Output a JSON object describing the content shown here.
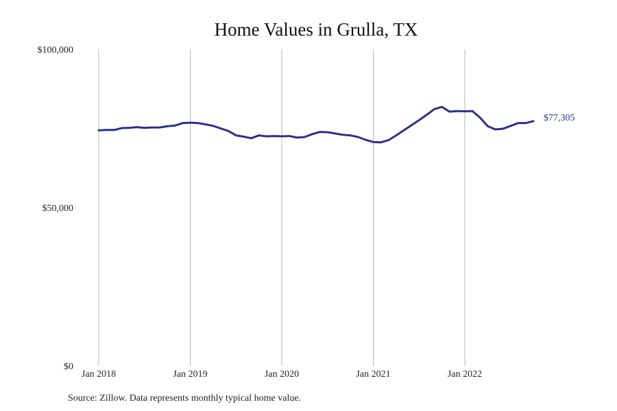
{
  "chart_data": {
    "type": "line",
    "title": "Home Values in Grulla, TX",
    "source_note": "Source: Zillow. Data represents monthly typical home value.",
    "x_start": "2018-01",
    "x_end": "2022-10",
    "x_ticks": [
      {
        "date": "2018-01",
        "label": "Jan 2018"
      },
      {
        "date": "2019-01",
        "label": "Jan 2019"
      },
      {
        "date": "2020-01",
        "label": "Jan 2020"
      },
      {
        "date": "2021-01",
        "label": "Jan 2021"
      },
      {
        "date": "2022-01",
        "label": "Jan 2022"
      }
    ],
    "y_ticks": [
      {
        "value": 0,
        "label": "$0"
      },
      {
        "value": 50000,
        "label": "$50,000"
      },
      {
        "value": 100000,
        "label": "$100,000"
      }
    ],
    "ylim": [
      0,
      100000
    ],
    "grid": "vertical lines at year ticks",
    "line_color": "#2e2e8c",
    "end_label": "$77,305",
    "series": [
      {
        "points": [
          [
            "2018-01",
            74400
          ],
          [
            "2018-02",
            74500
          ],
          [
            "2018-03",
            74500
          ],
          [
            "2018-04",
            75100
          ],
          [
            "2018-05",
            75200
          ],
          [
            "2018-06",
            75400
          ],
          [
            "2018-07",
            75200
          ],
          [
            "2018-08",
            75300
          ],
          [
            "2018-09",
            75300
          ],
          [
            "2018-10",
            75700
          ],
          [
            "2018-11",
            75900
          ],
          [
            "2018-12",
            76700
          ],
          [
            "2019-01",
            76800
          ],
          [
            "2019-02",
            76700
          ],
          [
            "2019-03",
            76300
          ],
          [
            "2019-04",
            75800
          ],
          [
            "2019-05",
            75000
          ],
          [
            "2019-06",
            74200
          ],
          [
            "2019-07",
            72800
          ],
          [
            "2019-08",
            72400
          ],
          [
            "2019-09",
            71900
          ],
          [
            "2019-10",
            72800
          ],
          [
            "2019-11",
            72500
          ],
          [
            "2019-12",
            72600
          ],
          [
            "2020-01",
            72500
          ],
          [
            "2020-02",
            72600
          ],
          [
            "2020-03",
            72100
          ],
          [
            "2020-04",
            72300
          ],
          [
            "2020-05",
            73200
          ],
          [
            "2020-06",
            73900
          ],
          [
            "2020-07",
            73800
          ],
          [
            "2020-08",
            73400
          ],
          [
            "2020-09",
            73000
          ],
          [
            "2020-10",
            72800
          ],
          [
            "2020-11",
            72300
          ],
          [
            "2020-12",
            71400
          ],
          [
            "2021-01",
            70700
          ],
          [
            "2021-02",
            70600
          ],
          [
            "2021-03",
            71300
          ],
          [
            "2021-04",
            72800
          ],
          [
            "2021-05",
            74400
          ],
          [
            "2021-06",
            76000
          ],
          [
            "2021-07",
            77600
          ],
          [
            "2021-08",
            79300
          ],
          [
            "2021-09",
            81100
          ],
          [
            "2021-10",
            81800
          ],
          [
            "2021-11",
            80300
          ],
          [
            "2021-12",
            80500
          ],
          [
            "2022-01",
            80400
          ],
          [
            "2022-02",
            80500
          ],
          [
            "2022-03",
            78400
          ],
          [
            "2022-04",
            75700
          ],
          [
            "2022-05",
            74700
          ],
          [
            "2022-06",
            74900
          ],
          [
            "2022-07",
            75800
          ],
          [
            "2022-08",
            76700
          ],
          [
            "2022-09",
            76700
          ],
          [
            "2022-10",
            77305
          ]
        ]
      }
    ]
  }
}
